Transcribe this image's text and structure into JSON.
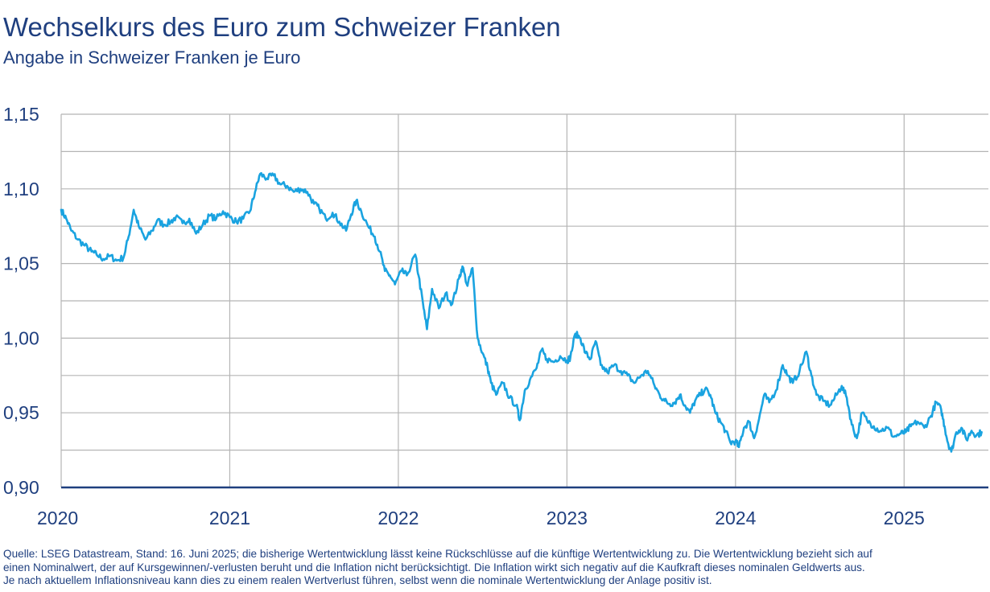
{
  "header": {
    "title": "Wechselkurs des Euro zum Schweizer Franken",
    "subtitle": "Angabe in Schweizer Franken je Euro"
  },
  "colors": {
    "text": "#1f3f7f",
    "line": "#1aa3e0",
    "grid": "#b5b5b5",
    "axis": "#1f3f7f"
  },
  "chart_data": {
    "type": "line",
    "title": "Wechselkurs des Euro zum Schweizer Franken",
    "subtitle": "Angabe in Schweizer Franken je Euro",
    "xlabel": "",
    "ylabel": "",
    "xlim": [
      2020.0,
      2025.5
    ],
    "ylim": [
      0.9,
      1.15
    ],
    "grid": true,
    "legend": "none",
    "y_ticks": [
      0.9,
      0.95,
      1.0,
      1.05,
      1.1,
      1.15
    ],
    "y_tick_labels": [
      "0,90",
      "0,95",
      "1,00",
      "1,05",
      "1,10",
      "1,15"
    ],
    "x_ticks": [
      2020,
      2021,
      2022,
      2023,
      2024,
      2025
    ],
    "x_tick_labels": [
      "2020",
      "2021",
      "2022",
      "2023",
      "2024",
      "2025"
    ],
    "series": [
      {
        "points": [
          [
            2020.0,
            1.086
          ],
          [
            2020.03,
            1.08
          ],
          [
            2020.06,
            1.072
          ],
          [
            2020.1,
            1.066
          ],
          [
            2020.14,
            1.062
          ],
          [
            2020.18,
            1.058
          ],
          [
            2020.21,
            1.056
          ],
          [
            2020.25,
            1.053
          ],
          [
            2020.29,
            1.055
          ],
          [
            2020.33,
            1.052
          ],
          [
            2020.37,
            1.054
          ],
          [
            2020.4,
            1.068
          ],
          [
            2020.43,
            1.086
          ],
          [
            2020.46,
            1.075
          ],
          [
            2020.5,
            1.066
          ],
          [
            2020.54,
            1.072
          ],
          [
            2020.57,
            1.079
          ],
          [
            2020.61,
            1.076
          ],
          [
            2020.65,
            1.078
          ],
          [
            2020.68,
            1.081
          ],
          [
            2020.72,
            1.077
          ],
          [
            2020.76,
            1.08
          ],
          [
            2020.8,
            1.07
          ],
          [
            2020.84,
            1.076
          ],
          [
            2020.88,
            1.082
          ],
          [
            2020.92,
            1.08
          ],
          [
            2020.96,
            1.085
          ],
          [
            2021.0,
            1.081
          ],
          [
            2021.04,
            1.078
          ],
          [
            2021.08,
            1.08
          ],
          [
            2021.12,
            1.085
          ],
          [
            2021.15,
            1.098
          ],
          [
            2021.18,
            1.11
          ],
          [
            2021.22,
            1.107
          ],
          [
            2021.26,
            1.109
          ],
          [
            2021.3,
            1.103
          ],
          [
            2021.34,
            1.102
          ],
          [
            2021.38,
            1.098
          ],
          [
            2021.42,
            1.1
          ],
          [
            2021.46,
            1.098
          ],
          [
            2021.5,
            1.09
          ],
          [
            2021.53,
            1.087
          ],
          [
            2021.57,
            1.08
          ],
          [
            2021.61,
            1.084
          ],
          [
            2021.65,
            1.078
          ],
          [
            2021.69,
            1.072
          ],
          [
            2021.72,
            1.083
          ],
          [
            2021.75,
            1.092
          ],
          [
            2021.78,
            1.085
          ],
          [
            2021.82,
            1.075
          ],
          [
            2021.86,
            1.068
          ],
          [
            2021.89,
            1.058
          ],
          [
            2021.92,
            1.045
          ],
          [
            2021.95,
            1.042
          ],
          [
            2021.98,
            1.036
          ],
          [
            2022.02,
            1.045
          ],
          [
            2022.05,
            1.042
          ],
          [
            2022.1,
            1.056
          ],
          [
            2022.12,
            1.042
          ],
          [
            2022.15,
            1.02
          ],
          [
            2022.17,
            1.006
          ],
          [
            2022.2,
            1.033
          ],
          [
            2022.24,
            1.02
          ],
          [
            2022.28,
            1.03
          ],
          [
            2022.32,
            1.023
          ],
          [
            2022.36,
            1.04
          ],
          [
            2022.38,
            1.048
          ],
          [
            2022.41,
            1.035
          ],
          [
            2022.44,
            1.047
          ],
          [
            2022.47,
            1.0
          ],
          [
            2022.5,
            0.99
          ],
          [
            2022.53,
            0.98
          ],
          [
            2022.55,
            0.97
          ],
          [
            2022.58,
            0.962
          ],
          [
            2022.62,
            0.97
          ],
          [
            2022.66,
            0.96
          ],
          [
            2022.7,
            0.955
          ],
          [
            2022.72,
            0.945
          ],
          [
            2022.75,
            0.965
          ],
          [
            2022.78,
            0.972
          ],
          [
            2022.82,
            0.98
          ],
          [
            2022.85,
            0.992
          ],
          [
            2022.88,
            0.986
          ],
          [
            2022.92,
            0.984
          ],
          [
            2022.96,
            0.988
          ],
          [
            2023.0,
            0.985
          ],
          [
            2023.02,
            0.987
          ],
          [
            2023.05,
            1.003
          ],
          [
            2023.08,
            1.0
          ],
          [
            2023.11,
            0.99
          ],
          [
            2023.14,
            0.986
          ],
          [
            2023.17,
            0.998
          ],
          [
            2023.2,
            0.982
          ],
          [
            2023.24,
            0.977
          ],
          [
            2023.28,
            0.982
          ],
          [
            2023.32,
            0.978
          ],
          [
            2023.36,
            0.975
          ],
          [
            2023.4,
            0.97
          ],
          [
            2023.44,
            0.975
          ],
          [
            2023.48,
            0.978
          ],
          [
            2023.52,
            0.968
          ],
          [
            2023.55,
            0.962
          ],
          [
            2023.58,
            0.958
          ],
          [
            2023.61,
            0.956
          ],
          [
            2023.64,
            0.957
          ],
          [
            2023.67,
            0.962
          ],
          [
            2023.7,
            0.955
          ],
          [
            2023.73,
            0.95
          ],
          [
            2023.76,
            0.958
          ],
          [
            2023.79,
            0.962
          ],
          [
            2023.82,
            0.966
          ],
          [
            2023.85,
            0.962
          ],
          [
            2023.88,
            0.95
          ],
          [
            2023.91,
            0.944
          ],
          [
            2023.94,
            0.938
          ],
          [
            2023.97,
            0.93
          ],
          [
            2024.0,
            0.931
          ],
          [
            2024.02,
            0.927
          ],
          [
            2024.05,
            0.94
          ],
          [
            2024.08,
            0.944
          ],
          [
            2024.11,
            0.933
          ],
          [
            2024.14,
            0.946
          ],
          [
            2024.17,
            0.962
          ],
          [
            2024.2,
            0.957
          ],
          [
            2024.24,
            0.965
          ],
          [
            2024.28,
            0.982
          ],
          [
            2024.31,
            0.975
          ],
          [
            2024.34,
            0.97
          ],
          [
            2024.38,
            0.978
          ],
          [
            2024.42,
            0.991
          ],
          [
            2024.45,
            0.975
          ],
          [
            2024.48,
            0.962
          ],
          [
            2024.52,
            0.958
          ],
          [
            2024.56,
            0.955
          ],
          [
            2024.6,
            0.962
          ],
          [
            2024.63,
            0.968
          ],
          [
            2024.66,
            0.96
          ],
          [
            2024.69,
            0.942
          ],
          [
            2024.72,
            0.933
          ],
          [
            2024.75,
            0.95
          ],
          [
            2024.78,
            0.945
          ],
          [
            2024.82,
            0.941
          ],
          [
            2024.86,
            0.938
          ],
          [
            2024.9,
            0.94
          ],
          [
            2024.94,
            0.934
          ],
          [
            2024.98,
            0.936
          ],
          [
            2025.01,
            0.937
          ],
          [
            2025.04,
            0.941
          ],
          [
            2025.08,
            0.944
          ],
          [
            2025.12,
            0.94
          ],
          [
            2025.16,
            0.948
          ],
          [
            2025.19,
            0.957
          ],
          [
            2025.22,
            0.952
          ],
          [
            2025.24,
            0.941
          ],
          [
            2025.26,
            0.93
          ],
          [
            2025.28,
            0.924
          ],
          [
            2025.31,
            0.937
          ],
          [
            2025.34,
            0.94
          ],
          [
            2025.37,
            0.932
          ],
          [
            2025.4,
            0.938
          ],
          [
            2025.43,
            0.935
          ],
          [
            2025.46,
            0.937
          ]
        ]
      }
    ]
  },
  "footer": {
    "source_lines": [
      "Quelle: LSEG Datastream, Stand: 16. Juni 2025; die bisherige Wertentwicklung lässt keine Rückschlüsse auf die künftige Wertentwicklung zu. Die Wertentwicklung bezieht sich auf",
      "einen Nominalwert, der auf Kursgewinnen/-verlusten beruht und die Inflation nicht berücksichtigt. Die Inflation wirkt sich negativ auf die Kaufkraft dieses nominalen Geldwerts aus.",
      "Je nach aktuellem Inflationsniveau kann dies zu einem realen Wertverlust führen, selbst wenn die nominale Wertentwicklung der Anlage positiv ist."
    ]
  }
}
